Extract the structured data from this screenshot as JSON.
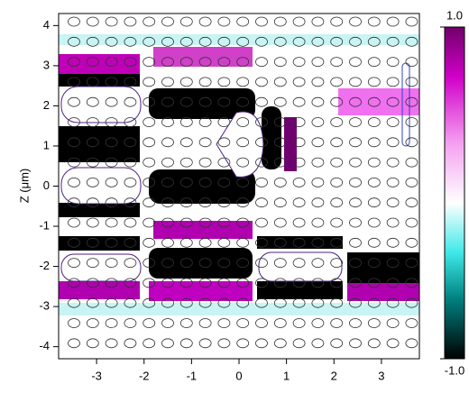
{
  "chart_data": {
    "type": "heatmap",
    "y_label": "Z (μm)",
    "xlim": [
      -3.8,
      3.8
    ],
    "xticks": [
      -3,
      -2,
      -1,
      0,
      1,
      2,
      3
    ],
    "ylim": [
      -4.3,
      4.3
    ],
    "yticks": [
      -4,
      -3,
      -2,
      -1,
      0,
      1,
      2,
      3,
      4
    ],
    "clim": [
      -1,
      1
    ],
    "colorbar_ticks": [
      {
        "value": 1,
        "label": "1.0"
      },
      {
        "value": -1,
        "label": "-1.0"
      }
    ]
  }
}
